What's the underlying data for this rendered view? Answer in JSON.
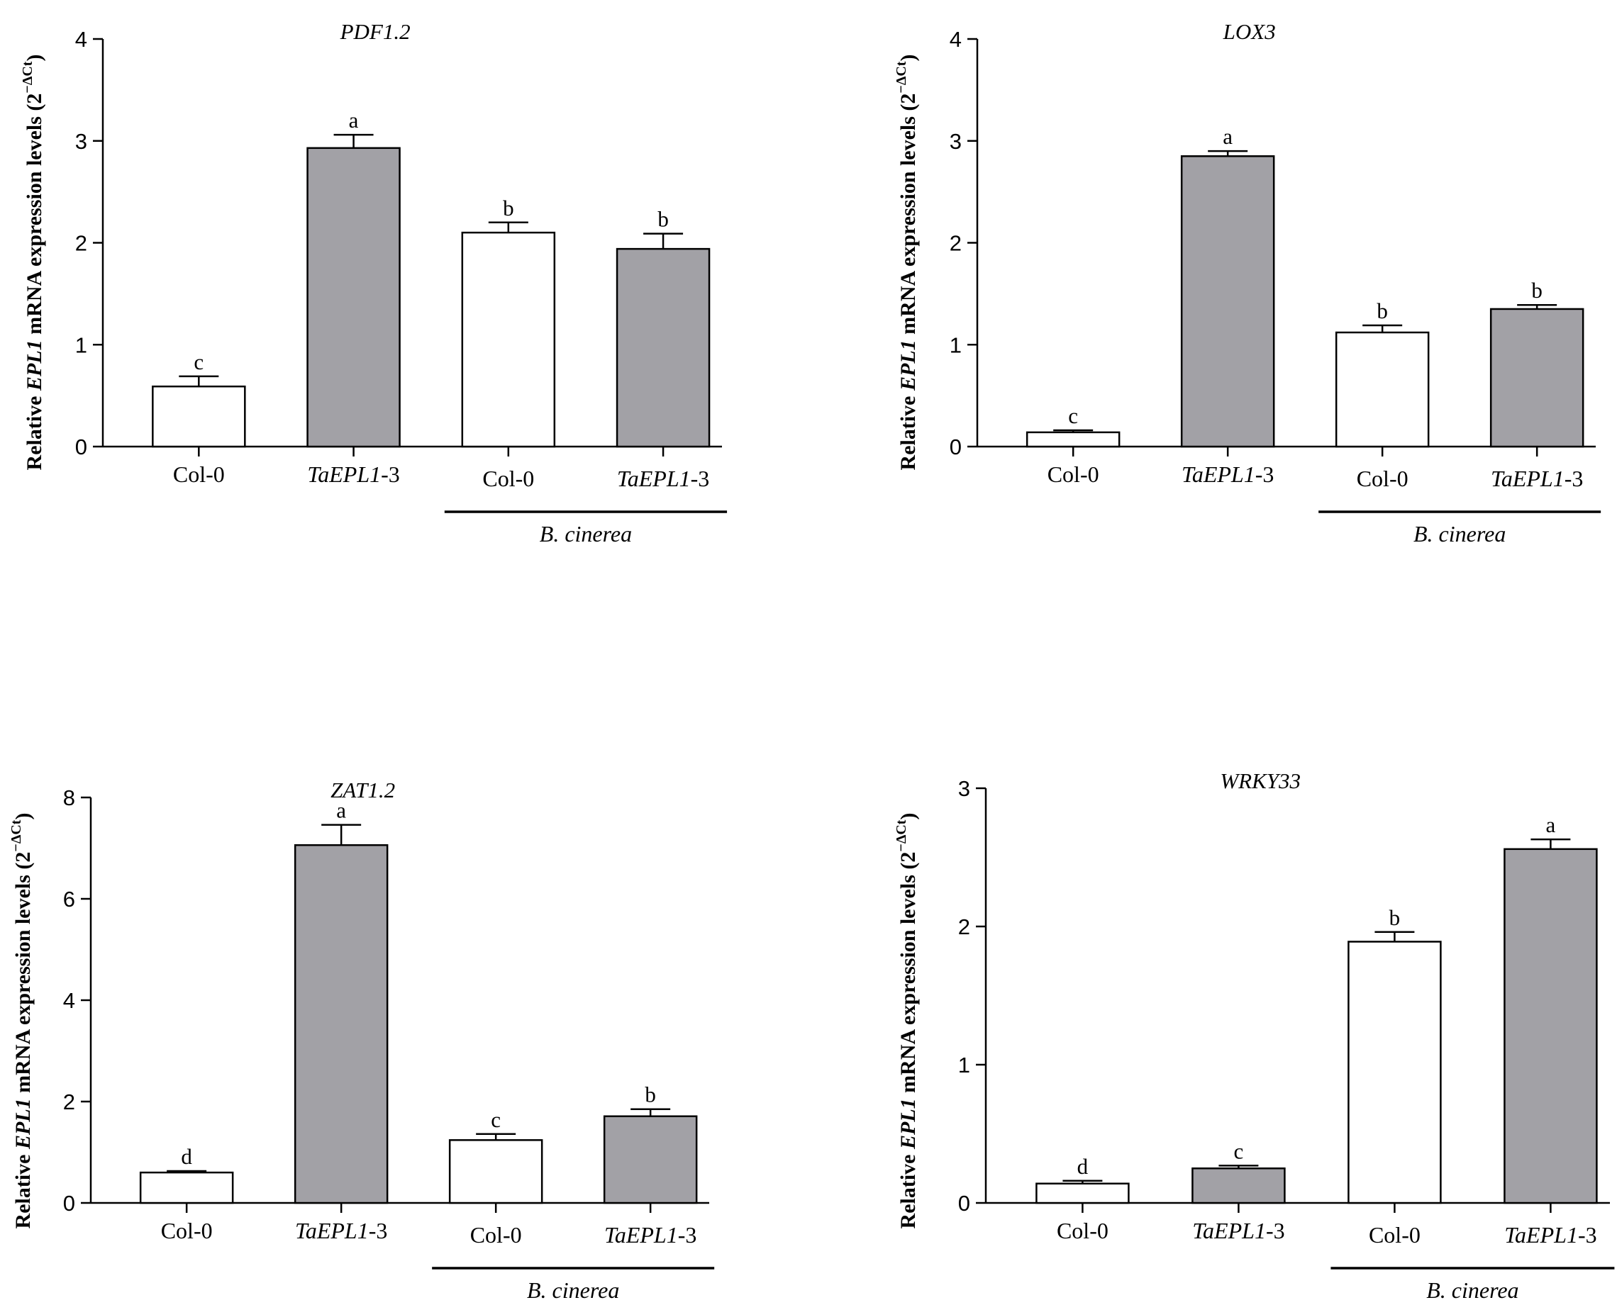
{
  "chart_data": [
    {
      "type": "bar",
      "title": "PDF1.2",
      "categories": [
        "Col-0",
        "TaEPL1-3",
        "Col-0",
        "TaEPL1-3"
      ],
      "values": [
        0.59,
        2.93,
        2.1,
        1.94
      ],
      "errors": [
        0.1,
        0.13,
        0.1,
        0.15
      ],
      "letters": [
        "c",
        "a",
        "b",
        "b"
      ],
      "ylabel": {
        "prefix": "Relative ",
        "gene": "EPL1",
        "suffix": " mRNA expression levels (2",
        "exponent": "−ΔCt",
        "close": ")"
      },
      "ylim": [
        0,
        4
      ],
      "yticks": [
        "0",
        "1",
        "2",
        "3",
        "4"
      ],
      "treatment_label": "B. cinerea"
    },
    {
      "type": "bar",
      "title": "LOX3",
      "categories": [
        "Col-0",
        "TaEPL1-3",
        "Col-0",
        "TaEPL1-3"
      ],
      "values": [
        0.14,
        2.85,
        1.12,
        1.35
      ],
      "errors": [
        0.02,
        0.05,
        0.07,
        0.04
      ],
      "letters": [
        "c",
        "a",
        "b",
        "b"
      ],
      "ylabel": {
        "prefix": "Relative ",
        "gene": "EPL1",
        "suffix": " mRNA expression levels (2",
        "exponent": "−ΔCt",
        "close": ")"
      },
      "ylim": [
        0,
        4
      ],
      "yticks": [
        "0",
        "1",
        "2",
        "3",
        "4"
      ],
      "treatment_label": "B. cinerea"
    },
    {
      "type": "bar",
      "title": "ZAT1.2",
      "categories": [
        "Col-0",
        "TaEPL1-3",
        "Col-0",
        "TaEPL1-3"
      ],
      "values": [
        0.6,
        7.06,
        1.24,
        1.71
      ],
      "errors": [
        0.03,
        0.4,
        0.12,
        0.14
      ],
      "letters": [
        "d",
        "a",
        "c",
        "b"
      ],
      "ylabel": {
        "prefix": "Relative ",
        "gene": "EPL1",
        "suffix": " mRNA expression levels (2",
        "exponent": "−ΔCt",
        "close": ")"
      },
      "ylim": [
        0,
        8
      ],
      "yticks": [
        "0",
        "2",
        "4",
        "6",
        "8"
      ],
      "treatment_label": "B. cinerea"
    },
    {
      "type": "bar",
      "title": "WRKY33",
      "categories": [
        "Col-0",
        "TaEPL1-3",
        "Col-0",
        "TaEPL1-3"
      ],
      "values": [
        0.14,
        0.25,
        1.89,
        2.56
      ],
      "errors": [
        0.02,
        0.02,
        0.07,
        0.07
      ],
      "letters": [
        "d",
        "c",
        "b",
        "a"
      ],
      "ylabel": {
        "prefix": "Relative ",
        "gene": "EPL1",
        "suffix": " mRNA expression levels (2",
        "exponent": "−ΔCt",
        "close": ")"
      },
      "ylim": [
        0,
        3
      ],
      "yticks": [
        "0",
        "1",
        "2",
        "3"
      ],
      "treatment_label": "B. cinerea"
    }
  ],
  "colors": {
    "control_fill": "#ffffff",
    "transgenic_fill": "#a2a1a6",
    "ink": "#000000"
  }
}
